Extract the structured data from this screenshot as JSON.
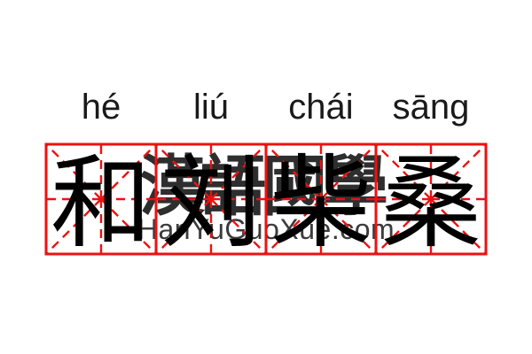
{
  "card": {
    "word": "和刘柴桑",
    "syllables": [
      {
        "pinyin": "hé",
        "char": "和"
      },
      {
        "pinyin": "liú",
        "char": "刘"
      },
      {
        "pinyin": "chái",
        "char": "柴"
      },
      {
        "pinyin": "sāng",
        "char": "桑"
      }
    ],
    "grid": {
      "style": "mizige",
      "cells": 4
    }
  },
  "watermark": {
    "cjk_text": "漢語國學",
    "site_text": "HanYuGuoXue.com"
  },
  "colors": {
    "background": "#ffffff",
    "grid_red": "#ee1111",
    "char_black": "#000000",
    "pinyin_dark": "#1a1a1a",
    "watermark_dark": "#2e2e2e",
    "watermark_site_dark": "#3b3b3b"
  }
}
